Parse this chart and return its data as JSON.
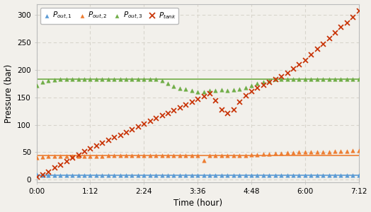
{
  "title": "",
  "xlabel": "Time (hour)",
  "ylabel": "Pressure (bar)",
  "xlim_minutes": [
    0,
    432
  ],
  "ylim": [
    -5,
    320
  ],
  "yticks": [
    0,
    50,
    100,
    150,
    200,
    250,
    300
  ],
  "xtick_minutes": [
    0,
    72,
    144,
    216,
    288,
    360,
    432
  ],
  "xtick_labels": [
    "0:00",
    "1:12",
    "2:24",
    "3:36",
    "4:48",
    "6:00",
    "7:12"
  ],
  "background_color": "#f2f0eb",
  "grid_color": "#d8d5cc",
  "series": {
    "P_out1": {
      "color": "#5b9bd5",
      "marker": "^",
      "label": "$P_{out,1}$",
      "line_color": "#5b9bd5",
      "line_t": [
        0,
        432
      ],
      "line_y": [
        8,
        8
      ],
      "scatter_t": [
        0,
        8,
        16,
        24,
        32,
        40,
        48,
        56,
        64,
        72,
        80,
        88,
        96,
        104,
        112,
        120,
        128,
        136,
        144,
        152,
        160,
        168,
        176,
        184,
        192,
        200,
        208,
        216,
        224,
        232,
        240,
        248,
        256,
        264,
        272,
        280,
        288,
        296,
        304,
        312,
        320,
        328,
        336,
        344,
        352,
        360,
        368,
        376,
        384,
        392,
        400,
        408,
        416,
        424,
        432
      ],
      "scatter_y": [
        10,
        8,
        8,
        8,
        8,
        8,
        8,
        8,
        8,
        8,
        8,
        8,
        8,
        8,
        8,
        8,
        8,
        8,
        8,
        8,
        8,
        8,
        8,
        8,
        8,
        8,
        8,
        8,
        8,
        8,
        8,
        8,
        8,
        8,
        8,
        8,
        8,
        8,
        8,
        8,
        8,
        8,
        8,
        8,
        8,
        8,
        8,
        8,
        8,
        8,
        8,
        8,
        8,
        8,
        8
      ]
    },
    "P_out2": {
      "color": "#ed7d31",
      "marker": "^",
      "label": "$P_{out,2}$",
      "line_color": "#ed7d31",
      "line_t": [
        0,
        280,
        432
      ],
      "line_y": [
        44,
        44,
        44
      ],
      "scatter_t": [
        0,
        8,
        16,
        24,
        32,
        40,
        48,
        56,
        64,
        72,
        80,
        88,
        96,
        104,
        112,
        120,
        128,
        136,
        144,
        152,
        160,
        168,
        176,
        184,
        192,
        200,
        208,
        216,
        224,
        232,
        240,
        248,
        256,
        264,
        272,
        280,
        288,
        296,
        304,
        312,
        320,
        328,
        336,
        344,
        352,
        360,
        368,
        376,
        384,
        392,
        400,
        408,
        416,
        424,
        432
      ],
      "scatter_y": [
        40,
        42,
        43,
        43,
        43,
        43,
        43,
        43,
        43,
        43,
        43,
        43,
        44,
        44,
        44,
        44,
        44,
        44,
        44,
        44,
        44,
        44,
        44,
        44,
        44,
        44,
        44,
        44,
        35,
        44,
        44,
        44,
        44,
        44,
        44,
        44,
        45,
        46,
        47,
        47,
        48,
        48,
        49,
        49,
        50,
        50,
        51,
        51,
        51,
        51,
        52,
        52,
        52,
        53,
        53
      ]
    },
    "P_out3": {
      "color": "#70ad47",
      "marker": "^",
      "label": "$P_{out,3}$",
      "line_color": "#70ad47",
      "line_t": [
        0,
        432
      ],
      "line_y": [
        183,
        183
      ],
      "scatter_t": [
        0,
        8,
        16,
        24,
        32,
        40,
        48,
        56,
        64,
        72,
        80,
        88,
        96,
        104,
        112,
        120,
        128,
        136,
        144,
        152,
        160,
        168,
        176,
        184,
        192,
        200,
        208,
        216,
        224,
        232,
        240,
        248,
        256,
        264,
        272,
        280,
        288,
        296,
        304,
        312,
        320,
        328,
        336,
        344,
        352,
        360,
        368,
        376,
        384,
        392,
        400,
        408,
        416,
        424,
        432
      ],
      "scatter_y": [
        172,
        178,
        181,
        182,
        183,
        183,
        183,
        183,
        183,
        183,
        183,
        183,
        183,
        183,
        183,
        183,
        183,
        183,
        183,
        183,
        183,
        180,
        175,
        170,
        167,
        165,
        162,
        160,
        160,
        162,
        163,
        164,
        163,
        164,
        165,
        168,
        172,
        175,
        178,
        181,
        183,
        183,
        183,
        183,
        183,
        183,
        183,
        183,
        183,
        183,
        183,
        183,
        183,
        183,
        183
      ]
    },
    "P_tank": {
      "color": "#c9370a",
      "marker": "x",
      "label": "$P_{tank}$",
      "scatter_t": [
        0,
        8,
        16,
        24,
        32,
        40,
        48,
        56,
        64,
        72,
        80,
        88,
        96,
        104,
        112,
        120,
        128,
        136,
        144,
        152,
        160,
        168,
        176,
        184,
        192,
        200,
        208,
        216,
        224,
        232,
        240,
        248,
        256,
        264,
        272,
        280,
        288,
        296,
        304,
        312,
        320,
        328,
        336,
        344,
        352,
        360,
        368,
        376,
        384,
        392,
        400,
        408,
        416,
        424,
        432
      ],
      "scatter_y": [
        5,
        10,
        15,
        22,
        28,
        34,
        40,
        46,
        52,
        57,
        62,
        67,
        72,
        77,
        82,
        87,
        92,
        97,
        102,
        107,
        112,
        117,
        122,
        127,
        132,
        137,
        142,
        147,
        152,
        157,
        145,
        128,
        122,
        128,
        142,
        153,
        161,
        168,
        173,
        178,
        183,
        188,
        195,
        203,
        210,
        218,
        228,
        238,
        248,
        258,
        268,
        278,
        286,
        296,
        308
      ]
    }
  }
}
